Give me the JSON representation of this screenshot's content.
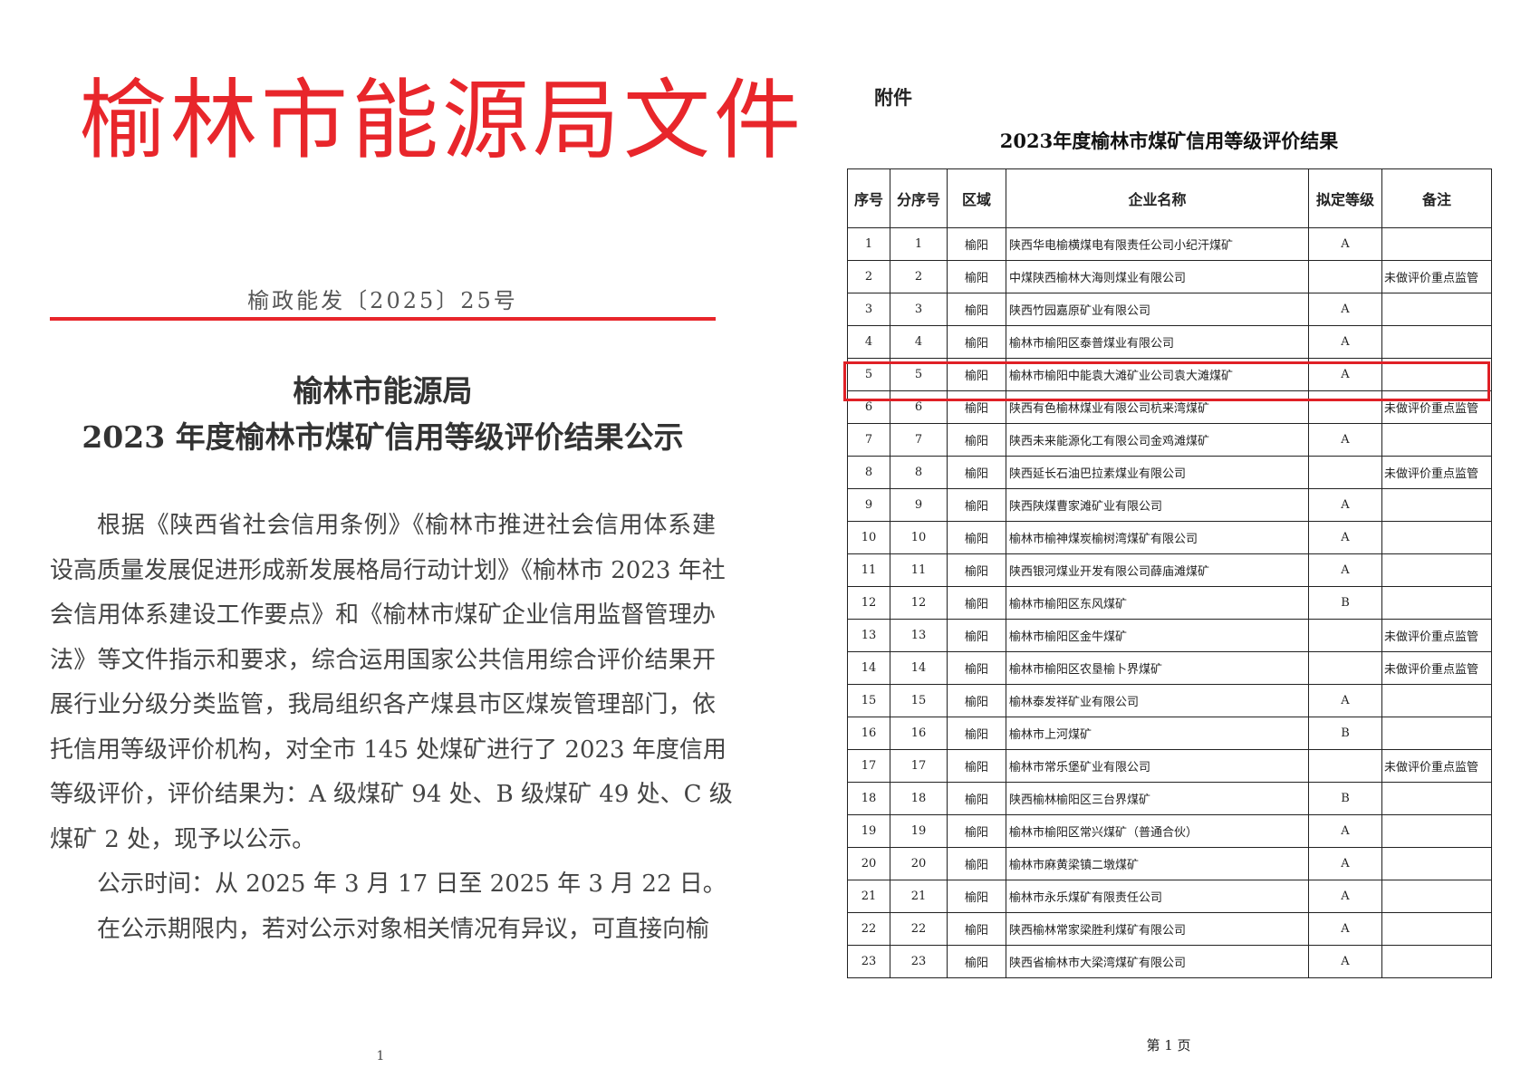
{
  "left_page": {
    "header_title": "榆林市能源局文件",
    "doc_number": "榆政能发〔2025〕25号",
    "heading_line1": "榆林市能源局",
    "heading_line2": "2023 年度榆林市煤矿信用等级评价结果公示",
    "body_lines": [
      "根据《陕西省社会信用条例》《榆林市推进社会信用体系建",
      "设高质量发展促进形成新发展格局行动计划》《榆林市 2023 年社",
      "会信用体系建设工作要点》和《榆林市煤矿企业信用监督管理办",
      "法》等文件指示和要求，综合运用国家公共信用综合评价结果开",
      "展行业分级分类监管，我局组织各产煤县市区煤炭管理部门，依",
      "托信用等级评价机构，对全市 145 处煤矿进行了 2023 年度信用",
      "等级评价，评价结果为：A 级煤矿 94 处、B 级煤矿 49 处、C 级",
      "煤矿 2 处，现予以公示。",
      "公示时间：从 2025 年 3 月 17 日至 2025 年 3 月 22 日。",
      "在公示期限内，若对公示对象相关情况有异议，可直接向榆"
    ],
    "page_number": "1"
  },
  "right_page": {
    "attachment_label": "附件",
    "table_title": "2023年度榆林市煤矿信用等级评价结果",
    "columns": [
      "序号",
      "分序号",
      "区域",
      "企业名称",
      "拟定等级",
      "备注"
    ],
    "rows": [
      [
        "1",
        "1",
        "榆阳",
        "陕西华电榆横煤电有限责任公司小纪汗煤矿",
        "A",
        ""
      ],
      [
        "2",
        "2",
        "榆阳",
        "中煤陕西榆林大海则煤业有限公司",
        "",
        "未做评价重点监管"
      ],
      [
        "3",
        "3",
        "榆阳",
        "陕西竹园嘉原矿业有限公司",
        "A",
        ""
      ],
      [
        "4",
        "4",
        "榆阳",
        "榆林市榆阳区泰普煤业有限公司",
        "A",
        ""
      ],
      [
        "5",
        "5",
        "榆阳",
        "榆林市榆阳中能袁大滩矿业公司袁大滩煤矿",
        "A",
        ""
      ],
      [
        "6",
        "6",
        "榆阳",
        "陕西有色榆林煤业有限公司杭来湾煤矿",
        "",
        "未做评价重点监管"
      ],
      [
        "7",
        "7",
        "榆阳",
        "陕西未来能源化工有限公司金鸡滩煤矿",
        "A",
        ""
      ],
      [
        "8",
        "8",
        "榆阳",
        "陕西延长石油巴拉素煤业有限公司",
        "",
        "未做评价重点监管"
      ],
      [
        "9",
        "9",
        "榆阳",
        "陕西陕煤曹家滩矿业有限公司",
        "A",
        ""
      ],
      [
        "10",
        "10",
        "榆阳",
        "榆林市榆神煤炭榆树湾煤矿有限公司",
        "A",
        ""
      ],
      [
        "11",
        "11",
        "榆阳",
        "陕西银河煤业开发有限公司薛庙滩煤矿",
        "A",
        ""
      ],
      [
        "12",
        "12",
        "榆阳",
        "榆林市榆阳区东风煤矿",
        "B",
        ""
      ],
      [
        "13",
        "13",
        "榆阳",
        "榆林市榆阳区金牛煤矿",
        "",
        "未做评价重点监管"
      ],
      [
        "14",
        "14",
        "榆阳",
        "榆林市榆阳区农垦榆卜界煤矿",
        "",
        "未做评价重点监管"
      ],
      [
        "15",
        "15",
        "榆阳",
        "榆林泰发祥矿业有限公司",
        "A",
        ""
      ],
      [
        "16",
        "16",
        "榆阳",
        "榆林市上河煤矿",
        "B",
        ""
      ],
      [
        "17",
        "17",
        "榆阳",
        "榆林市常乐堡矿业有限公司",
        "",
        "未做评价重点监管"
      ],
      [
        "18",
        "18",
        "榆阳",
        "陕西榆林榆阳区三台界煤矿",
        "B",
        ""
      ],
      [
        "19",
        "19",
        "榆阳",
        "榆林市榆阳区常兴煤矿（普通合伙）",
        "A",
        ""
      ],
      [
        "20",
        "20",
        "榆阳",
        "榆林市麻黄梁镇二墩煤矿",
        "A",
        ""
      ],
      [
        "21",
        "21",
        "榆阳",
        "榆林市永乐煤矿有限责任公司",
        "A",
        ""
      ],
      [
        "22",
        "22",
        "榆阳",
        "陕西榆林常家梁胜利煤矿有限公司",
        "A",
        ""
      ],
      [
        "23",
        "23",
        "榆阳",
        "陕西省榆林市大梁湾煤矿有限公司",
        "A",
        ""
      ]
    ],
    "highlighted_row": "5",
    "highlight_color": "#e02026",
    "page_footer": "第 1 页"
  },
  "colors": {
    "header_red": "#e8262b"
  }
}
